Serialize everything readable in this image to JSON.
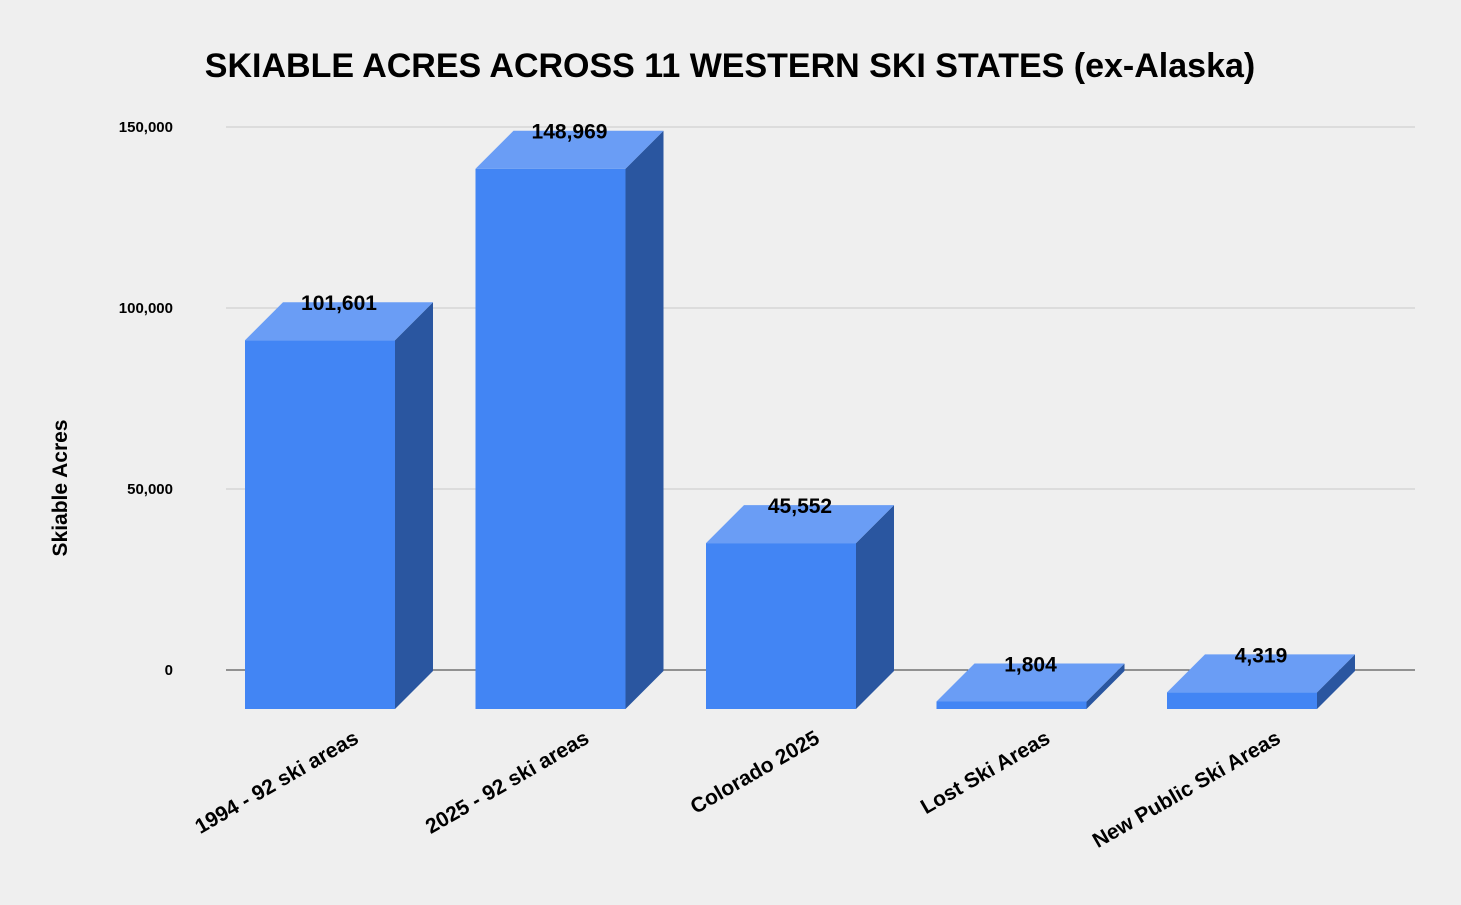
{
  "chart_data": {
    "type": "bar",
    "title": "SKIABLE ACRES ACROSS 11 WESTERN SKI STATES (ex-Alaska)",
    "xlabel": "",
    "ylabel": "Skiable Acres",
    "categories": [
      "1994 - 92 ski areas",
      "2025 - 92 ski areas",
      "Colorado 2025",
      "Lost Ski Areas",
      "New Public Ski Areas"
    ],
    "values": [
      101601,
      148969,
      45552,
      1804,
      4319
    ],
    "value_labels": [
      "101,601",
      "148,969",
      "45,552",
      "1,804",
      "4,319"
    ],
    "ylim": [
      0,
      150000
    ],
    "yticks": [
      0,
      50000,
      100000,
      150000
    ],
    "ytick_labels": [
      "0",
      "50,000",
      "100,000",
      "150,000"
    ],
    "grid": true,
    "style": "3d-column",
    "colors": {
      "front": "#4285f4",
      "top": "#6a9df5",
      "side": "#2a56a0",
      "background": "#efefef"
    }
  }
}
